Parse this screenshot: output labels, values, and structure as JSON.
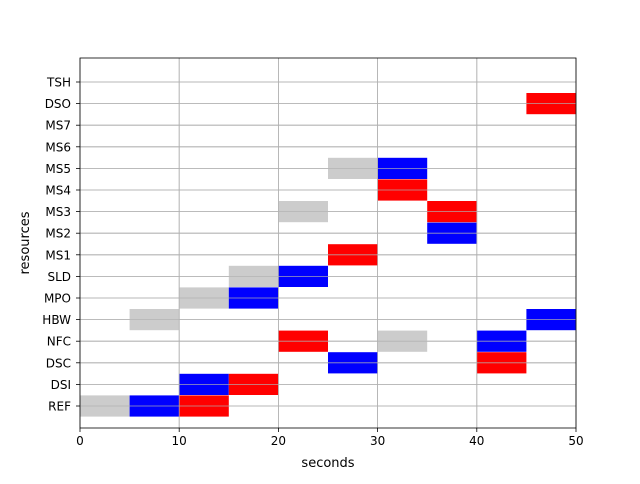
{
  "chart_data": {
    "type": "gantt",
    "xlabel": "seconds",
    "ylabel": "resources",
    "xlim": [
      0,
      50
    ],
    "xticks": [
      0,
      10,
      20,
      30,
      40,
      50
    ],
    "grid": true,
    "resources": [
      "REF",
      "DSI",
      "DSC",
      "NFC",
      "HBW",
      "MPO",
      "SLD",
      "MS1",
      "MS2",
      "MS3",
      "MS4",
      "MS5",
      "MS6",
      "MS7",
      "DSO",
      "TSH"
    ],
    "colors": {
      "gray": "#cccccc",
      "blue": "#0000ff",
      "red": "#ff0000"
    },
    "bars": [
      {
        "resource": "REF",
        "start": 0,
        "end": 5,
        "color": "gray"
      },
      {
        "resource": "REF",
        "start": 5,
        "end": 10,
        "color": "blue"
      },
      {
        "resource": "REF",
        "start": 10,
        "end": 15,
        "color": "red"
      },
      {
        "resource": "DSI",
        "start": 10,
        "end": 15,
        "color": "blue"
      },
      {
        "resource": "DSI",
        "start": 15,
        "end": 20,
        "color": "red"
      },
      {
        "resource": "DSC",
        "start": 25,
        "end": 30,
        "color": "blue"
      },
      {
        "resource": "DSC",
        "start": 40,
        "end": 45,
        "color": "red"
      },
      {
        "resource": "NFC",
        "start": 20,
        "end": 25,
        "color": "red"
      },
      {
        "resource": "NFC",
        "start": 30,
        "end": 35,
        "color": "gray"
      },
      {
        "resource": "NFC",
        "start": 40,
        "end": 45,
        "color": "blue"
      },
      {
        "resource": "HBW",
        "start": 5,
        "end": 10,
        "color": "gray"
      },
      {
        "resource": "HBW",
        "start": 45,
        "end": 50,
        "color": "blue"
      },
      {
        "resource": "MPO",
        "start": 10,
        "end": 15,
        "color": "gray"
      },
      {
        "resource": "MPO",
        "start": 15,
        "end": 20,
        "color": "blue"
      },
      {
        "resource": "SLD",
        "start": 15,
        "end": 20,
        "color": "gray"
      },
      {
        "resource": "SLD",
        "start": 20,
        "end": 25,
        "color": "blue"
      },
      {
        "resource": "MS1",
        "start": 25,
        "end": 30,
        "color": "red"
      },
      {
        "resource": "MS2",
        "start": 35,
        "end": 40,
        "color": "blue"
      },
      {
        "resource": "MS3",
        "start": 20,
        "end": 25,
        "color": "gray"
      },
      {
        "resource": "MS3",
        "start": 35,
        "end": 40,
        "color": "red"
      },
      {
        "resource": "MS4",
        "start": 30,
        "end": 35,
        "color": "red"
      },
      {
        "resource": "MS5",
        "start": 25,
        "end": 30,
        "color": "gray"
      },
      {
        "resource": "MS5",
        "start": 30,
        "end": 35,
        "color": "blue"
      },
      {
        "resource": "DSO",
        "start": 45,
        "end": 50,
        "color": "red"
      }
    ]
  }
}
